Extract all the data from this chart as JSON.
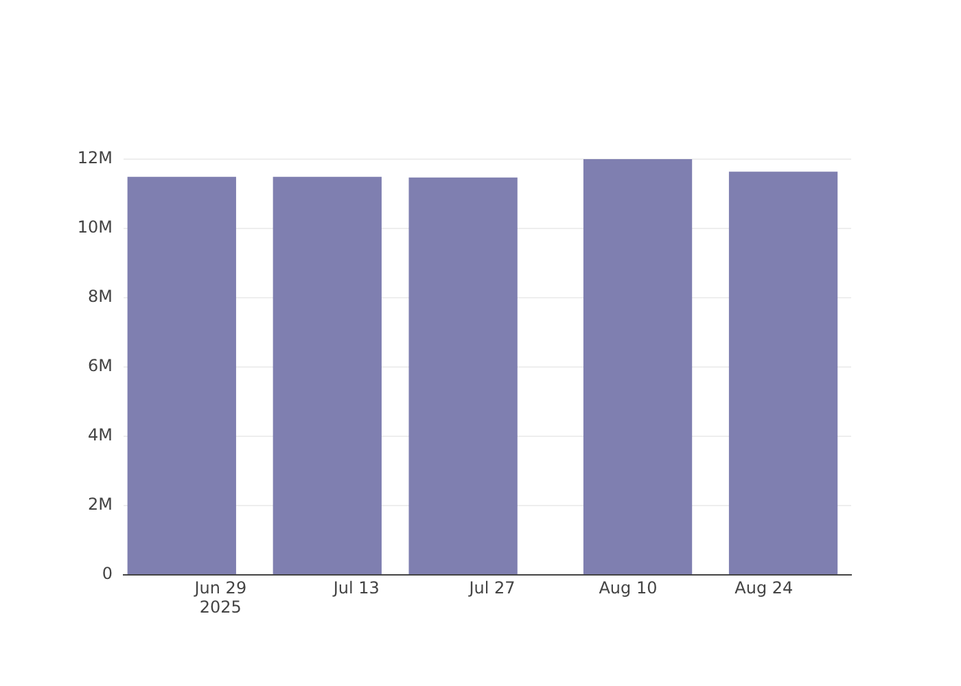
{
  "chart_data": {
    "type": "bar",
    "x": [
      "2025-06-25",
      "2025-07-10",
      "2025-07-24",
      "2025-08-11",
      "2025-08-26"
    ],
    "values": [
      11490000.0,
      11490000.0,
      11470000.0,
      12000000.0,
      11640000.0
    ],
    "color": "#7f7fb0",
    "xlim": [
      "2025-06-19",
      "2025-09-02"
    ],
    "xticks": [
      {
        "value": "2025-06-29",
        "label": "Jun 29\n2025"
      },
      {
        "value": "2025-07-13",
        "label": "Jul 13"
      },
      {
        "value": "2025-07-27",
        "label": "Jul 27"
      },
      {
        "value": "2025-08-10",
        "label": "Aug 10"
      },
      {
        "value": "2025-08-24",
        "label": "Aug 24"
      }
    ],
    "ylim": [
      0,
      12000000
    ],
    "yticks": [
      0,
      {
        "value": 2000000,
        "label": "2M"
      },
      {
        "value": 4000000,
        "label": "4M"
      },
      {
        "value": 6000000,
        "label": "6M"
      },
      {
        "value": 8000000,
        "label": "8M"
      },
      {
        "value": 10000000,
        "label": "10M"
      },
      {
        "value": 12000000,
        "label": "12M"
      }
    ],
    "grid": "y"
  }
}
